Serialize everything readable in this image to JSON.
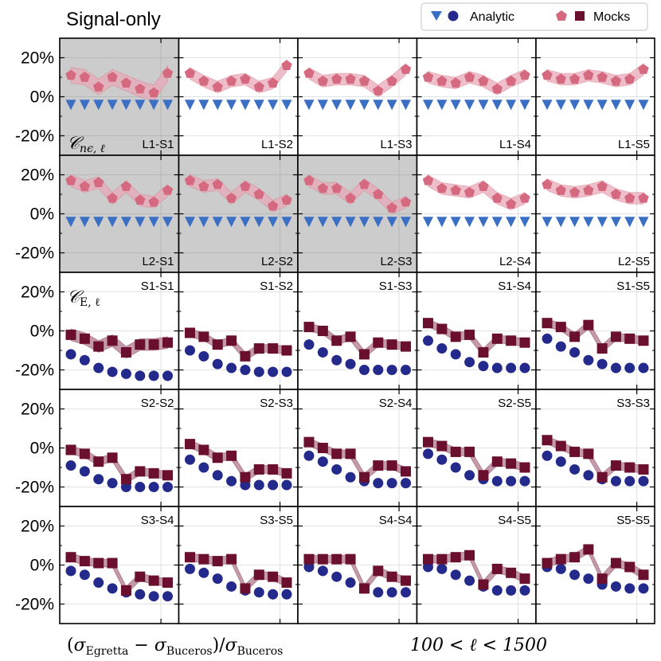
{
  "colors": {
    "analytic_triangle": "#3a6fc4",
    "analytic_circle": "#232a8c",
    "mocks_pentagon": "#d4697f",
    "mocks_pentagon_band": "#e8a9b8",
    "mocks_square": "#6b0f2e",
    "mocks_square_band": "#b07a8d",
    "shade": "#cccccc"
  },
  "figure": {
    "title": "Signal-only",
    "xlabel_left": {
      "open": "(",
      "sigma": "σ",
      "sub1": "Egretta",
      "minus": " − ",
      "sub2": "Buceros",
      "close": ")/",
      "sub3": "Buceros"
    },
    "xlabel_right": "100 < ℓ < 1500",
    "row_tags": [
      "𝒞",
      "nϵ, ℓ",
      "𝒞",
      "E, ℓ"
    ]
  },
  "legend": {
    "analytic_label": "Analytic",
    "mocks_label": "Mocks",
    "analytic_markers": [
      "triangle-down",
      "circle"
    ],
    "mocks_markers": [
      "pentagon",
      "square"
    ]
  },
  "chart_data": {
    "type": "scatter",
    "title": "Signal-only",
    "ylim": [
      -30,
      30
    ],
    "yticks": [
      20,
      0,
      -20
    ],
    "ytick_labels": [
      "20%",
      "0%",
      "-20%"
    ],
    "n_ell_bins": 8,
    "ell_range": [
      100,
      1500
    ],
    "grid": true,
    "legend_location": "top-right",
    "rows": [
      {
        "quantity": "C_nepsilon_ell",
        "panels": [
          {
            "label": "L1-S1",
            "shaded": true,
            "analytic": [
              -4,
              -4,
              -4,
              -4,
              -4,
              -4,
              -4,
              -4
            ],
            "mocks": [
              11,
              10,
              5,
              10,
              7,
              4,
              2,
              12
            ],
            "mocks_err": 4
          },
          {
            "label": "L1-S2",
            "shaded": false,
            "analytic": [
              -4,
              -4,
              -4,
              -4,
              -4,
              -4,
              -4,
              -4
            ],
            "mocks": [
              12,
              8,
              5,
              8,
              9,
              5,
              7,
              16
            ],
            "mocks_err": 3
          },
          {
            "label": "L1-S3",
            "shaded": false,
            "analytic": [
              -4,
              -4,
              -4,
              -4,
              -4,
              -4,
              -4,
              -4
            ],
            "mocks": [
              12,
              8,
              9,
              9,
              8,
              3,
              8,
              14
            ],
            "mocks_err": 3
          },
          {
            "label": "L1-S4",
            "shaded": false,
            "analytic": [
              -4,
              -4,
              -4,
              -4,
              -4,
              -4,
              -4,
              -4
            ],
            "mocks": [
              10,
              8,
              7,
              10,
              8,
              4,
              8,
              11
            ],
            "mocks_err": 3
          },
          {
            "label": "L1-S5",
            "shaded": false,
            "analytic": [
              -4,
              -4,
              -4,
              -4,
              -4,
              -4,
              -4,
              -4
            ],
            "mocks": [
              11,
              9,
              9,
              11,
              10,
              8,
              9,
              14
            ],
            "mocks_err": 3
          }
        ]
      },
      {
        "quantity": "C_nepsilon_ell",
        "panels": [
          {
            "label": "L2-S1",
            "shaded": true,
            "analytic": [
              -4,
              -4,
              -4,
              -4,
              -4,
              -4,
              -4,
              -4
            ],
            "mocks": [
              17,
              14,
              16,
              8,
              14,
              7,
              6,
              12
            ],
            "mocks_err": 3
          },
          {
            "label": "L2-S2",
            "shaded": true,
            "analytic": [
              -4,
              -4,
              -4,
              -4,
              -4,
              -4,
              -4,
              -4
            ],
            "mocks": [
              17,
              14,
              15,
              8,
              14,
              10,
              4,
              7
            ],
            "mocks_err": 3
          },
          {
            "label": "L2-S3",
            "shaded": true,
            "analytic": [
              -4,
              -4,
              -4,
              -4,
              -4,
              -4,
              -4,
              -4
            ],
            "mocks": [
              17,
              13,
              13,
              8,
              15,
              10,
              3,
              6
            ],
            "mocks_err": 3
          },
          {
            "label": "L2-S4",
            "shaded": false,
            "analytic": [
              -4,
              -4,
              -4,
              -4,
              -4,
              -4,
              -4,
              -4
            ],
            "mocks": [
              17,
              13,
              12,
              11,
              14,
              8,
              5,
              8
            ],
            "mocks_err": 3
          },
          {
            "label": "L2-S5",
            "shaded": false,
            "analytic": [
              -4,
              -4,
              -4,
              -4,
              -4,
              -4,
              -4,
              -4
            ],
            "mocks": [
              15,
              12,
              11,
              12,
              14,
              10,
              8,
              8
            ],
            "mocks_err": 3
          }
        ]
      },
      {
        "quantity": "C_E_ell",
        "panels": [
          {
            "label": "S1-S1",
            "shaded": false,
            "analytic": [
              -12,
              -15,
              -19,
              -21,
              -22,
              -23,
              -23,
              -23
            ],
            "mocks": [
              -2,
              -4,
              -8,
              -5,
              -11,
              -7,
              -7,
              -6
            ],
            "mocks_err": 3
          },
          {
            "label": "S1-S2",
            "shaded": false,
            "analytic": [
              -10,
              -13,
              -17,
              -19,
              -20,
              -21,
              -21,
              -21
            ],
            "mocks": [
              -1,
              -3,
              -7,
              -5,
              -13,
              -9,
              -9,
              -10
            ],
            "mocks_err": 2
          },
          {
            "label": "S1-S3",
            "shaded": false,
            "analytic": [
              -7,
              -11,
              -15,
              -17,
              -20,
              -20,
              -20,
              -20
            ],
            "mocks": [
              2,
              0,
              -5,
              -3,
              -12,
              -6,
              -7,
              -8
            ],
            "mocks_err": 2
          },
          {
            "label": "S1-S4",
            "shaded": false,
            "analytic": [
              -5,
              -9,
              -12,
              -16,
              -18,
              -19,
              -19,
              -19
            ],
            "mocks": [
              4,
              1,
              -3,
              -2,
              -11,
              -4,
              -5,
              -6
            ],
            "mocks_err": 2
          },
          {
            "label": "S1-S5",
            "shaded": false,
            "analytic": [
              -4,
              -8,
              -11,
              -15,
              -17,
              -19,
              -19,
              -19
            ],
            "mocks": [
              4,
              2,
              -3,
              3,
              -9,
              -3,
              -4,
              -5
            ],
            "mocks_err": 2
          }
        ]
      },
      {
        "quantity": "C_E_ell",
        "panels": [
          {
            "label": "S2-S2",
            "shaded": false,
            "analytic": [
              -9,
              -12,
              -16,
              -18,
              -20,
              -20,
              -20,
              -20
            ],
            "mocks": [
              -1,
              -3,
              -7,
              -5,
              -16,
              -12,
              -13,
              -14
            ],
            "mocks_err": 2
          },
          {
            "label": "S2-S3",
            "shaded": false,
            "analytic": [
              -6,
              -10,
              -14,
              -17,
              -19,
              -19,
              -19,
              -19
            ],
            "mocks": [
              2,
              -1,
              -5,
              -4,
              -15,
              -11,
              -11,
              -13
            ],
            "mocks_err": 2
          },
          {
            "label": "S2-S4",
            "shaded": false,
            "analytic": [
              -4,
              -7,
              -11,
              -15,
              -17,
              -18,
              -18,
              -18
            ],
            "mocks": [
              3,
              0,
              -3,
              -3,
              -15,
              -9,
              -9,
              -12
            ],
            "mocks_err": 2
          },
          {
            "label": "S2-S5",
            "shaded": false,
            "analytic": [
              -3,
              -6,
              -10,
              -14,
              -16,
              -17,
              -17,
              -17
            ],
            "mocks": [
              3,
              1,
              -2,
              -2,
              -14,
              -7,
              -8,
              -10
            ],
            "mocks_err": 2
          },
          {
            "label": "S3-S3",
            "shaded": false,
            "analytic": [
              -4,
              -7,
              -11,
              -14,
              -16,
              -17,
              -17,
              -17
            ],
            "mocks": [
              4,
              1,
              -2,
              -3,
              -15,
              -9,
              -10,
              -11
            ],
            "mocks_err": 2
          }
        ]
      },
      {
        "quantity": "C_E_ell",
        "panels": [
          {
            "label": "S3-S4",
            "shaded": false,
            "analytic": [
              -3,
              -5,
              -9,
              -12,
              -14,
              -15,
              -16,
              -16
            ],
            "mocks": [
              4,
              2,
              1,
              1,
              -13,
              -6,
              -8,
              -9
            ],
            "mocks_err": 2
          },
          {
            "label": "S3-S5",
            "shaded": false,
            "analytic": [
              -2,
              -4,
              -7,
              -11,
              -13,
              -14,
              -15,
              -15
            ],
            "mocks": [
              4,
              3,
              2,
              3,
              -12,
              -5,
              -6,
              -9
            ],
            "mocks_err": 2
          },
          {
            "label": "S4-S4",
            "shaded": false,
            "analytic": [
              -1,
              -3,
              -6,
              -9,
              -12,
              -14,
              -14,
              -14
            ],
            "mocks": [
              3,
              3,
              3,
              3,
              -12,
              -3,
              -6,
              -8
            ],
            "mocks_err": 2
          },
          {
            "label": "S4-S5",
            "shaded": false,
            "analytic": [
              -1,
              -2,
              -5,
              -8,
              -11,
              -13,
              -13,
              -13
            ],
            "mocks": [
              3,
              3,
              4,
              5,
              -10,
              -2,
              -4,
              -7
            ],
            "mocks_err": 2
          },
          {
            "label": "S5-S5",
            "shaded": false,
            "analytic": [
              -1,
              -2,
              -5,
              -7,
              -10,
              -11,
              -12,
              -12
            ],
            "mocks": [
              1,
              3,
              4,
              8,
              -7,
              1,
              -1,
              -5
            ],
            "mocks_err": 2
          }
        ]
      }
    ]
  }
}
